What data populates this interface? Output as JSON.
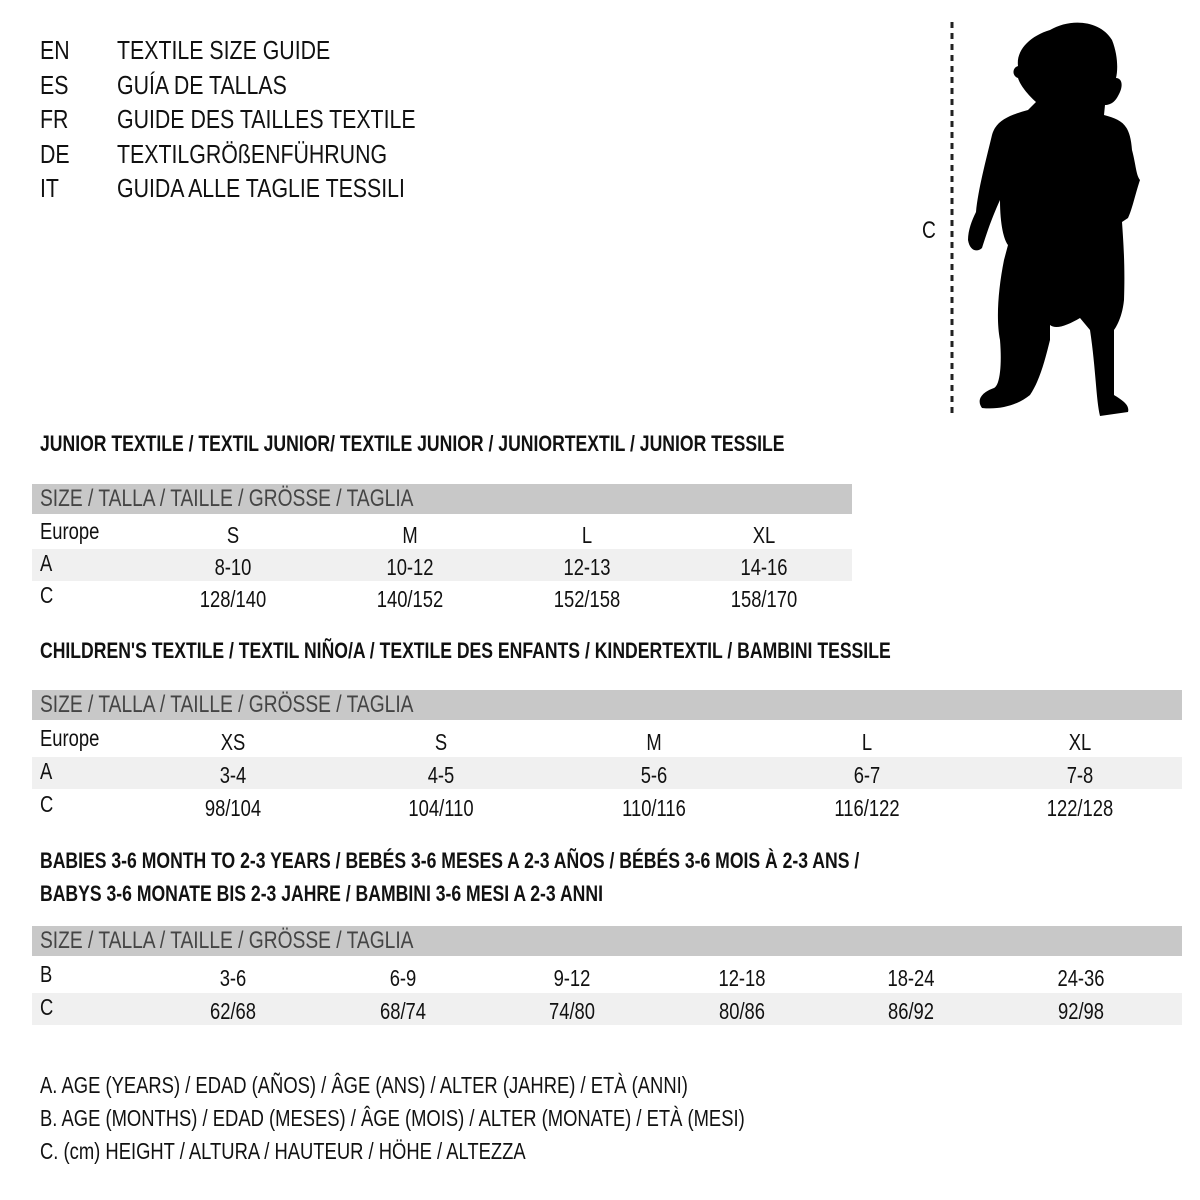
{
  "header": [
    {
      "code": "EN",
      "title": "TEXTILE SIZE GUIDE"
    },
    {
      "code": "ES",
      "title": "GUÍA DE TALLAS"
    },
    {
      "code": "FR",
      "title": "GUIDE DES TAILLES TEXTILE"
    },
    {
      "code": "DE",
      "title": "TEXTILGRÖßENFÜHRUNG"
    },
    {
      "code": "IT",
      "title": "GUIDA ALLE TAGLIE TESSILI"
    }
  ],
  "figure": {
    "measure_label": "C",
    "icon": "child-silhouette-icon"
  },
  "colors": {
    "header_bar": "#c8c8c8",
    "alt_row": "#f0f0f0",
    "text": "#111111"
  },
  "sections": [
    {
      "title_lines": [
        "JUNIOR TEXTILE / TEXTIL JUNIOR/ TEXTILE JUNIOR / JUNIORTEXTIL / JUNIOR TESSILE"
      ],
      "size_header": "SIZE / TALLA / TAILLE / GRÖSSE / TAGLIA",
      "rows": [
        {
          "label": "Europe",
          "cells": [
            "S",
            "M",
            "L",
            "XL"
          ]
        },
        {
          "label": "A",
          "cells": [
            "8-10",
            "10-12",
            "12-13",
            "14-16"
          ]
        },
        {
          "label": "C",
          "cells": [
            "128/140",
            "140/152",
            "152/158",
            "158/170"
          ]
        }
      ]
    },
    {
      "title_lines": [
        "CHILDREN'S TEXTILE / TEXTIL NIÑO/A / TEXTILE DES ENFANTS / KINDERTEXTIL / BAMBINI TESSILE"
      ],
      "size_header": "SIZE / TALLA / TAILLE / GRÖSSE / TAGLIA",
      "rows": [
        {
          "label": "Europe",
          "cells": [
            "XS",
            "S",
            "M",
            "L",
            "XL"
          ]
        },
        {
          "label": "A",
          "cells": [
            "3-4",
            "4-5",
            "5-6",
            "6-7",
            "7-8"
          ]
        },
        {
          "label": "C",
          "cells": [
            "98/104",
            "104/110",
            "110/116",
            "116/122",
            "122/128"
          ]
        }
      ]
    },
    {
      "title_lines": [
        "BABIES 3-6 MONTH TO 2-3 YEARS / BEBÉS 3-6 MESES A 2-3 AÑOS / BÉBÉS 3-6 MOIS À 2-3 ANS /",
        "BABYS 3-6 MONATE BIS 2-3 JAHRE / BAMBINI 3-6 MESI A 2-3 ANNI"
      ],
      "size_header": "SIZE / TALLA / TAILLE / GRÖSSE / TAGLIA",
      "rows": [
        {
          "label": "B",
          "cells": [
            "3-6",
            "6-9",
            "9-12",
            "12-18",
            "18-24",
            "24-36"
          ]
        },
        {
          "label": "C",
          "cells": [
            "62/68",
            "68/74",
            "74/80",
            "80/86",
            "86/92",
            "92/98"
          ]
        }
      ]
    }
  ],
  "legend": [
    "A. AGE (YEARS) / EDAD (AÑOS) / ÂGE (ANS) / ALTER (JAHRE) / ETÀ (ANNI)",
    "B. AGE (MONTHS) / EDAD (MESES) / ÂGE (MOIS) / ALTER (MONATE) / ETÀ (MESI)",
    "C. (cm) HEIGHT / ALTURA / HAUTEUR / HÖHE / ALTEZZA"
  ]
}
